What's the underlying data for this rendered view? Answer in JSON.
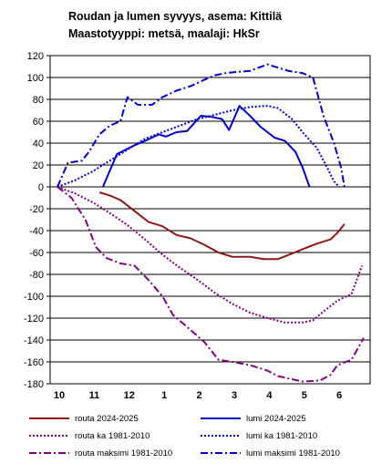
{
  "chart_data": {
    "type": "line",
    "title": "Roudan ja lumen syvyys, asema: Kittilä",
    "subtitle": "Maastotyyppi: metsä, maalaji: HkSr",
    "ylim": [
      -180,
      120
    ],
    "yticks": [
      120,
      100,
      80,
      60,
      40,
      20,
      0,
      -20,
      -40,
      -60,
      -80,
      -100,
      -120,
      -140,
      -160,
      -180
    ],
    "xlim": [
      0,
      8.75
    ],
    "xticks": [
      {
        "pos": 0,
        "label": "10"
      },
      {
        "pos": 1,
        "label": "11"
      },
      {
        "pos": 2,
        "label": "12"
      },
      {
        "pos": 3,
        "label": "1"
      },
      {
        "pos": 4,
        "label": "2"
      },
      {
        "pos": 5,
        "label": "3"
      },
      {
        "pos": 6,
        "label": "4"
      },
      {
        "pos": 7,
        "label": "5"
      },
      {
        "pos": 8,
        "label": "6"
      }
    ],
    "grid": "horizontal",
    "legend_position": "bottom",
    "series": [
      {
        "name": "routa 2024-2025",
        "color": "#8b1a1a",
        "style": "solid",
        "width": 2,
        "points": [
          [
            1.2,
            -5
          ],
          [
            1.5,
            -8
          ],
          [
            1.8,
            -12
          ],
          [
            2.2,
            -22
          ],
          [
            2.6,
            -32
          ],
          [
            3,
            -36
          ],
          [
            3.4,
            -44
          ],
          [
            3.8,
            -47
          ],
          [
            4.2,
            -53
          ],
          [
            4.6,
            -60
          ],
          [
            5,
            -64
          ],
          [
            5.5,
            -64
          ],
          [
            5.9,
            -66
          ],
          [
            6.3,
            -66
          ],
          [
            6.7,
            -61
          ],
          [
            7,
            -57
          ],
          [
            7.4,
            -52
          ],
          [
            7.8,
            -48
          ],
          [
            8,
            -42
          ],
          [
            8.2,
            -34
          ]
        ]
      },
      {
        "name": "lumi 2024-2025",
        "color": "#0000c8",
        "style": "solid",
        "width": 2,
        "points": [
          [
            1.3,
            0
          ],
          [
            1.7,
            30
          ],
          [
            2.2,
            38
          ],
          [
            2.5,
            42
          ],
          [
            2.9,
            48
          ],
          [
            3.1,
            46
          ],
          [
            3.4,
            50
          ],
          [
            3.7,
            51
          ],
          [
            4.1,
            65
          ],
          [
            4.4,
            64
          ],
          [
            4.7,
            62
          ],
          [
            4.9,
            52
          ],
          [
            5.2,
            74
          ],
          [
            5.5,
            65
          ],
          [
            5.8,
            55
          ],
          [
            6.2,
            45
          ],
          [
            6.5,
            42
          ],
          [
            6.8,
            32
          ],
          [
            7,
            18
          ],
          [
            7.2,
            0
          ]
        ]
      },
      {
        "name": "routa ka 1981-2010",
        "color": "#800080",
        "style": "dot",
        "width": 2,
        "points": [
          [
            0,
            0
          ],
          [
            0.5,
            -6
          ],
          [
            1,
            -14
          ],
          [
            1.5,
            -24
          ],
          [
            2,
            -35
          ],
          [
            2.5,
            -48
          ],
          [
            3,
            -62
          ],
          [
            3.5,
            -74
          ],
          [
            4,
            -85
          ],
          [
            4.5,
            -97
          ],
          [
            5,
            -107
          ],
          [
            5.5,
            -115
          ],
          [
            6,
            -120
          ],
          [
            6.5,
            -124
          ],
          [
            7,
            -124
          ],
          [
            7.3,
            -122
          ],
          [
            7.6,
            -114
          ],
          [
            8,
            -104
          ],
          [
            8.4,
            -98
          ],
          [
            8.7,
            -72
          ]
        ]
      },
      {
        "name": "lumi ka 1981-2010",
        "color": "#0000c8",
        "style": "dot",
        "width": 2,
        "points": [
          [
            0,
            0
          ],
          [
            0.5,
            6
          ],
          [
            1,
            14
          ],
          [
            1.5,
            24
          ],
          [
            2,
            34
          ],
          [
            2.5,
            44
          ],
          [
            3,
            50
          ],
          [
            3.5,
            56
          ],
          [
            4,
            62
          ],
          [
            4.5,
            66
          ],
          [
            5,
            70
          ],
          [
            5.5,
            73
          ],
          [
            6,
            74
          ],
          [
            6.3,
            72
          ],
          [
            6.7,
            62
          ],
          [
            7,
            50
          ],
          [
            7.4,
            36
          ],
          [
            7.7,
            18
          ],
          [
            7.9,
            5
          ],
          [
            8.05,
            0
          ]
        ]
      },
      {
        "name": "routa maksimi 1981-2010",
        "color": "#800080",
        "style": "dashdot",
        "width": 2,
        "points": [
          [
            0,
            0
          ],
          [
            0.4,
            -10
          ],
          [
            0.8,
            -30
          ],
          [
            1.1,
            -55
          ],
          [
            1.4,
            -65
          ],
          [
            1.8,
            -70
          ],
          [
            2.2,
            -72
          ],
          [
            2.6,
            -85
          ],
          [
            3,
            -100
          ],
          [
            3.3,
            -117
          ],
          [
            3.7,
            -128
          ],
          [
            4.2,
            -142
          ],
          [
            4.6,
            -158
          ],
          [
            5,
            -160
          ],
          [
            5.5,
            -163
          ],
          [
            6,
            -168
          ],
          [
            6.3,
            -173
          ],
          [
            7,
            -178
          ],
          [
            7.5,
            -177
          ],
          [
            7.8,
            -172
          ],
          [
            8,
            -163
          ],
          [
            8.4,
            -158
          ],
          [
            8.75,
            -138
          ]
        ]
      },
      {
        "name": "lumi maksimi 1981-2010",
        "color": "#0000c8",
        "style": "dashdot",
        "width": 2,
        "points": [
          [
            0,
            0
          ],
          [
            0.3,
            22
          ],
          [
            0.7,
            24
          ],
          [
            0.9,
            32
          ],
          [
            1.2,
            48
          ],
          [
            1.5,
            56
          ],
          [
            1.8,
            60
          ],
          [
            2,
            82
          ],
          [
            2.3,
            75
          ],
          [
            2.7,
            75
          ],
          [
            3,
            82
          ],
          [
            3.4,
            88
          ],
          [
            3.8,
            92
          ],
          [
            4.2,
            98
          ],
          [
            4.5,
            102
          ],
          [
            4.8,
            104
          ],
          [
            5.1,
            105
          ],
          [
            5.5,
            106
          ],
          [
            6,
            112
          ],
          [
            6.3,
            109
          ],
          [
            6.6,
            106
          ],
          [
            7,
            104
          ],
          [
            7.3,
            100
          ],
          [
            7.6,
            65
          ],
          [
            7.9,
            40
          ],
          [
            8.1,
            18
          ],
          [
            8.2,
            0
          ]
        ]
      }
    ]
  }
}
